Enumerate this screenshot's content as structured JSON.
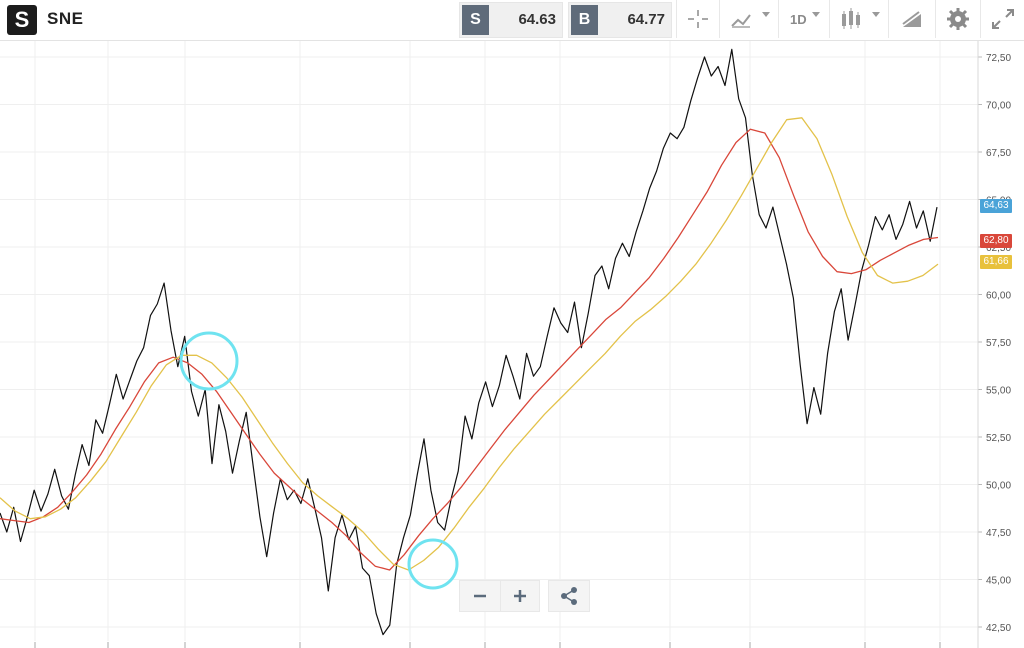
{
  "header": {
    "logo_letter": "S",
    "symbol": "SNE",
    "sell_tag": "S",
    "sell_price": "64.63",
    "buy_tag": "B",
    "buy_price": "64.77",
    "timeframe": "1D"
  },
  "icons": [
    "crosshair-icon",
    "chart-type-icon",
    "interval-icon",
    "candles-icon",
    "draw-icon",
    "gear-icon",
    "fullscreen-icon",
    "zoom-out-icon",
    "zoom-in-icon",
    "share-icon"
  ],
  "colors": {
    "price_line": "#111111",
    "ma_fast": "#d9473a",
    "ma_slow": "#e3c24a",
    "highlight_circle": "#6fe3f0",
    "last_price_label": "#4aa3d8",
    "ma_fast_label": "#d9473a",
    "ma_slow_label": "#e8c13c"
  },
  "chart_data": {
    "type": "line",
    "title": "",
    "ylim": [
      41.5,
      73.5
    ],
    "y_ticks": [
      "42,50",
      "45,00",
      "47,50",
      "50,00",
      "52,50",
      "55,00",
      "57,50",
      "60,00",
      "62,50",
      "65,00",
      "67,50",
      "70,00",
      "72,50"
    ],
    "series": [
      {
        "values": [
          48.5,
          47.5,
          48.8,
          47.0,
          48.3,
          49.7,
          48.6,
          49.5,
          50.8,
          49.4,
          48.7,
          50.5,
          52.1,
          51.0,
          53.4,
          52.7,
          54.2,
          55.8,
          54.5,
          55.5,
          56.5,
          57.2,
          58.9,
          59.5,
          60.6,
          58.1,
          56.2,
          57.8,
          54.9,
          53.6,
          55.0,
          51.1,
          54.2,
          52.8,
          50.6,
          52.3,
          53.8,
          51.0,
          48.3,
          46.2,
          48.5,
          50.3,
          49.2,
          49.7,
          49.0,
          50.3,
          48.8,
          47.2,
          44.4,
          47.2,
          48.4,
          47.1,
          47.8,
          45.6,
          45.2,
          43.2,
          42.1,
          42.6,
          45.8,
          47.2,
          48.4,
          50.5,
          52.4,
          49.7,
          48.0,
          47.6,
          49.3,
          50.7,
          53.6,
          52.4,
          54.3,
          55.4,
          54.1,
          55.2,
          56.8,
          55.7,
          54.5,
          56.9,
          55.7,
          56.2,
          57.8,
          59.3,
          58.5,
          58.0,
          59.6,
          57.2,
          59.0,
          61.0,
          61.5,
          60.3,
          61.9,
          62.7,
          62.0,
          63.3,
          64.4,
          65.6,
          66.5,
          67.7,
          68.5,
          68.2,
          68.8,
          70.2,
          71.4,
          72.5,
          71.5,
          72.0,
          71.0,
          72.9,
          70.3,
          69.3,
          66.3,
          64.2,
          63.5,
          64.6,
          63.1,
          61.6,
          59.8,
          56.3,
          53.2,
          55.1,
          53.7,
          56.9,
          59.1,
          60.3,
          57.6,
          59.4,
          61.3,
          62.6,
          64.1,
          63.4,
          64.2,
          62.9,
          63.7,
          64.9,
          63.5,
          64.4,
          62.8,
          64.6
        ],
        "color": "#111111"
      },
      {
        "values": [
          48.2,
          48.1,
          48.0,
          48.3,
          48.8,
          49.6,
          50.5,
          51.6,
          52.9,
          54.1,
          55.4,
          56.4,
          56.7,
          56.4,
          55.8,
          54.9,
          53.8,
          52.7,
          51.6,
          50.6,
          49.9,
          49.2,
          48.6,
          48.0,
          47.3,
          46.4,
          45.7,
          45.5,
          46.3,
          47.3,
          48.2,
          49.0,
          49.9,
          50.9,
          51.9,
          52.9,
          53.8,
          54.7,
          55.5,
          56.3,
          57.1,
          57.9,
          58.7,
          59.3,
          60.1,
          60.9,
          61.9,
          63.0,
          64.2,
          65.4,
          66.8,
          68.0,
          68.7,
          68.5,
          67.2,
          65.2,
          63.3,
          62.0,
          61.2,
          61.1,
          61.3,
          61.8,
          62.2,
          62.6,
          62.9,
          63.0
        ],
        "color": "#d9473a"
      },
      {
        "values": [
          49.3,
          48.6,
          48.2,
          48.3,
          48.7,
          49.3,
          50.2,
          51.2,
          52.5,
          53.8,
          55.2,
          56.3,
          56.8,
          56.8,
          56.4,
          55.6,
          54.6,
          53.4,
          52.2,
          51.1,
          50.1,
          49.4,
          48.8,
          48.2,
          47.5,
          46.6,
          45.8,
          45.5,
          46.0,
          46.7,
          47.7,
          48.8,
          49.8,
          50.9,
          51.9,
          52.8,
          53.7,
          54.5,
          55.3,
          56.1,
          56.9,
          57.8,
          58.6,
          59.2,
          59.9,
          60.7,
          61.6,
          62.7,
          63.9,
          65.2,
          66.6,
          68.0,
          69.2,
          69.3,
          68.2,
          66.3,
          64.1,
          62.2,
          61.0,
          60.6,
          60.7,
          61.0,
          61.6
        ],
        "color": "#e3c24a"
      }
    ],
    "price_labels": {
      "last": "64,63",
      "ma_fast": "62,80",
      "ma_slow": "61,66"
    },
    "grid": true,
    "legend": "none"
  }
}
